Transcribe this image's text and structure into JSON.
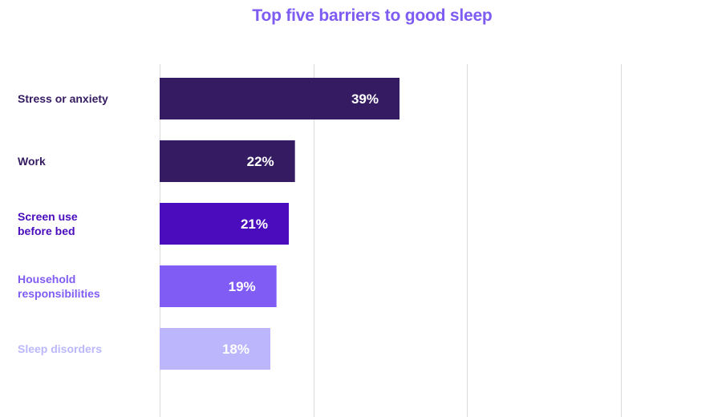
{
  "chart_data": {
    "type": "bar",
    "orientation": "horizontal",
    "title": "Top five barriers to good sleep",
    "categories": [
      "Stress or anxiety",
      "Work",
      "Screen use before bed",
      "Household responsibilities",
      "Sleep disorders"
    ],
    "category_lines": [
      [
        "Stress or anxiety"
      ],
      [
        "Work"
      ],
      [
        "Screen use",
        "before bed"
      ],
      [
        "Household",
        "responsibilities"
      ],
      [
        "Sleep disorders"
      ]
    ],
    "values": [
      39,
      22,
      21,
      19,
      18
    ],
    "value_labels": [
      "39%",
      "22%",
      "21%",
      "19%",
      "18%"
    ],
    "bar_colors": [
      "#351c62",
      "#351c62",
      "#4a0cbc",
      "#805cf4",
      "#bcb7fc"
    ],
    "label_colors": [
      "#351c62",
      "#351c62",
      "#4a0cbc",
      "#805cf4",
      "#bcb7fc"
    ],
    "xlim": [
      0,
      95
    ],
    "gridlines": [
      0,
      25,
      50,
      75
    ],
    "grid": true,
    "axis_tick_labels_shown": false,
    "xlabel": "",
    "ylabel": ""
  }
}
